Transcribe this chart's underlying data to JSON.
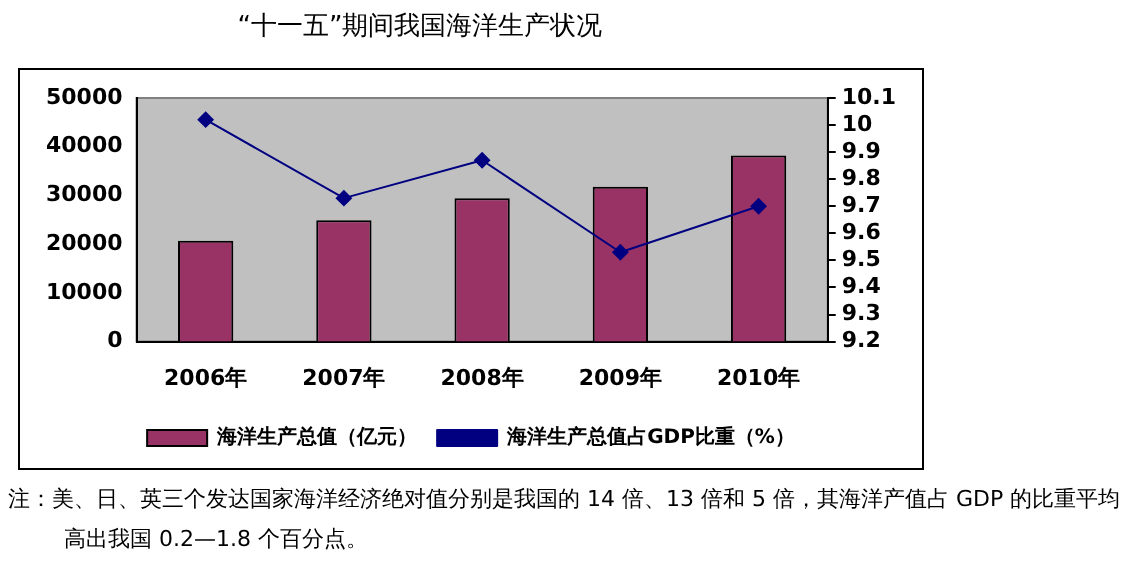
{
  "chart_data": {
    "type": "bar",
    "title": "“十一五”期间我国海洋生产状况",
    "categories": [
      "2006年",
      "2007年",
      "2008年",
      "2009年",
      "2010年"
    ],
    "series": [
      {
        "name": "海洋生产总值（亿元）",
        "color": "#993366",
        "values": [
          20700,
          24900,
          29400,
          31800,
          38200
        ]
      },
      {
        "name": "海洋生产总值占GDP比重（%）",
        "type": "line",
        "axis": "y2",
        "color": "#000080",
        "values": [
          10.02,
          9.73,
          9.87,
          9.53,
          9.7
        ]
      }
    ],
    "ylim": [
      0,
      50000
    ],
    "yticks": [
      0,
      10000,
      20000,
      30000,
      40000,
      50000
    ],
    "y2lim": [
      9.2,
      10.1
    ],
    "y2ticks": [
      9.2,
      9.3,
      9.4,
      9.5,
      9.6,
      9.7,
      9.8,
      9.9,
      {
        "value": 10,
        "label": "10"
      },
      10.1
    ],
    "grid": false,
    "legend": "bottom",
    "marker": "diamond",
    "line_style": "solid",
    "annotations": [
      "注：美、日、英三个发达国家海洋经济绝对值分别是我国的 14 倍、13 倍和 5 倍，其海洋产值占 GDP 的比重平均高出我国 0.2—1.8 个百分点。"
    ]
  }
}
